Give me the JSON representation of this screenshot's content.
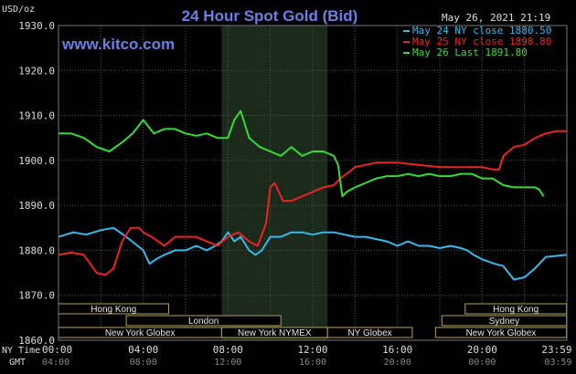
{
  "chart_data": {
    "type": "line",
    "title": "24 Hour Spot Gold (Bid)",
    "website": "www.kitco.com",
    "timestamp": "May 26, 2021 21:19",
    "ylabel": "USD/oz",
    "ylim": [
      1860,
      1930
    ],
    "y_ticks": [
      "1930.0",
      "1920.0",
      "1910.0",
      "1900.0",
      "1890.0",
      "1880.0",
      "1870.0",
      "1860.0"
    ],
    "y_tick_values": [
      1930,
      1920,
      1910,
      1900,
      1890,
      1880,
      1870,
      1860
    ],
    "x_range_hours": [
      0,
      24
    ],
    "ny_time_label": "NY Time",
    "gmt_label": "GMT",
    "ny_time_ticks": [
      "00:00",
      "04:00",
      "08:00",
      "12:00",
      "16:00",
      "20:00",
      "23:59"
    ],
    "gmt_ticks": [
      "04:00",
      "08:00",
      "12:00",
      "16:00",
      "20:00",
      "00:00",
      "03:59"
    ],
    "tick_hours": [
      0,
      4,
      8,
      12,
      16,
      20,
      23.98
    ],
    "grid": true,
    "legend_position": "top-right",
    "highlight_hours": [
      7.7,
      12.7
    ],
    "sessions": [
      {
        "name": "Hong Kong",
        "start": 0,
        "end": 5.2,
        "row": 0
      },
      {
        "name": "Hong Kong",
        "start": 19.2,
        "end": 23.98,
        "row": 0
      },
      {
        "name": "London",
        "start": 3.2,
        "end": 10.5,
        "row": 1
      },
      {
        "name": "Sydney",
        "start": 18.1,
        "end": 23.98,
        "row": 1
      },
      {
        "name": "New York Globex",
        "start": 0,
        "end": 7.7,
        "row": 2
      },
      {
        "name": "New York NYMEX",
        "start": 7.7,
        "end": 12.7,
        "row": 2
      },
      {
        "name": "NY Globex",
        "start": 12.7,
        "end": 16.7,
        "row": 2
      },
      {
        "name": "New York Globex",
        "start": 17.8,
        "end": 23.98,
        "row": 2
      }
    ],
    "series": [
      {
        "name": "May 24 NY close 1880.50",
        "color": "#33bbee",
        "x": [
          0,
          0.7,
          1.3,
          2,
          2.6,
          3.2,
          4,
          4.3,
          4.6,
          5,
          5.5,
          6,
          6.5,
          7,
          7.4,
          7.7,
          8,
          8.3,
          8.6,
          9,
          9.3,
          9.6,
          10,
          10.5,
          11,
          11.5,
          12,
          12.5,
          13,
          13.5,
          14,
          14.5,
          15,
          15.5,
          16,
          16.5,
          17,
          17.5,
          18,
          18.5,
          19,
          19.3,
          19.6,
          20,
          20.3,
          20.6,
          21,
          21.5,
          22,
          22.5,
          23,
          23.98
        ],
        "y": [
          1883,
          1884,
          1883.5,
          1884.5,
          1885,
          1883,
          1880,
          1877,
          1878,
          1879,
          1880,
          1880,
          1881,
          1880,
          1881,
          1882,
          1884,
          1882,
          1883,
          1880,
          1879,
          1880,
          1883,
          1883,
          1884,
          1884,
          1883.5,
          1884,
          1884,
          1883.5,
          1883,
          1883,
          1882.5,
          1882,
          1881,
          1882,
          1881,
          1881,
          1880.5,
          1881,
          1880.5,
          1880,
          1879,
          1878,
          1877.5,
          1877,
          1876.5,
          1873.5,
          1874,
          1876,
          1878.5,
          1879
        ]
      },
      {
        "name": "May 25 NY close 1898.80",
        "color": "#ee2222",
        "x": [
          0,
          0.6,
          1.2,
          1.8,
          2.2,
          2.6,
          3,
          3.4,
          3.8,
          4,
          4.4,
          5,
          5.5,
          6,
          6.5,
          7,
          7.5,
          8,
          8.5,
          9,
          9.4,
          9.8,
          10,
          10.2,
          10.6,
          11,
          11.5,
          12,
          12.5,
          13,
          13.3,
          13.6,
          14,
          15,
          16,
          17,
          18,
          19,
          20,
          20.5,
          20.8,
          21,
          21.5,
          22,
          22.5,
          23,
          23.5,
          23.98
        ],
        "y": [
          1879,
          1879.5,
          1879,
          1875,
          1874.5,
          1876,
          1882,
          1885,
          1885,
          1884,
          1883,
          1881,
          1883,
          1883,
          1883,
          1882,
          1881,
          1883,
          1884,
          1882,
          1881,
          1886,
          1894,
          1895,
          1891,
          1891,
          1892,
          1893,
          1894,
          1894.5,
          1896,
          1897,
          1898.5,
          1899.5,
          1899.5,
          1899,
          1898.5,
          1898.5,
          1898.5,
          1898,
          1898,
          1901,
          1903,
          1903.5,
          1905,
          1906,
          1906.5,
          1906.5
        ]
      },
      {
        "name": "May 26 Last 1891.80",
        "color": "#33dd33",
        "x": [
          0,
          0.6,
          1.2,
          1.8,
          2.4,
          3,
          3.5,
          4,
          4.5,
          5,
          5.5,
          6,
          6.5,
          7,
          7.5,
          8,
          8.3,
          8.6,
          9,
          9.5,
          10,
          10.5,
          11,
          11.5,
          12,
          12.5,
          13,
          13.2,
          13.4,
          13.6,
          14,
          14.5,
          15,
          15.5,
          16,
          16.5,
          17,
          17.5,
          18,
          18.5,
          19,
          19.5,
          20,
          20.5,
          21,
          21.5,
          22,
          22.5,
          22.7,
          22.9
        ],
        "y": [
          1906,
          1906,
          1905,
          1903,
          1902,
          1904,
          1906,
          1909,
          1906,
          1907,
          1907,
          1906,
          1905.5,
          1906,
          1905,
          1905,
          1909,
          1911,
          1905,
          1903,
          1902,
          1901,
          1903,
          1901,
          1902,
          1902,
          1901,
          1899,
          1892,
          1893,
          1894,
          1895,
          1896,
          1896.5,
          1896.5,
          1897,
          1896.5,
          1897,
          1896.5,
          1896.5,
          1897,
          1897,
          1896,
          1896,
          1894.5,
          1894,
          1894,
          1894,
          1893.5,
          1892
        ]
      }
    ]
  }
}
